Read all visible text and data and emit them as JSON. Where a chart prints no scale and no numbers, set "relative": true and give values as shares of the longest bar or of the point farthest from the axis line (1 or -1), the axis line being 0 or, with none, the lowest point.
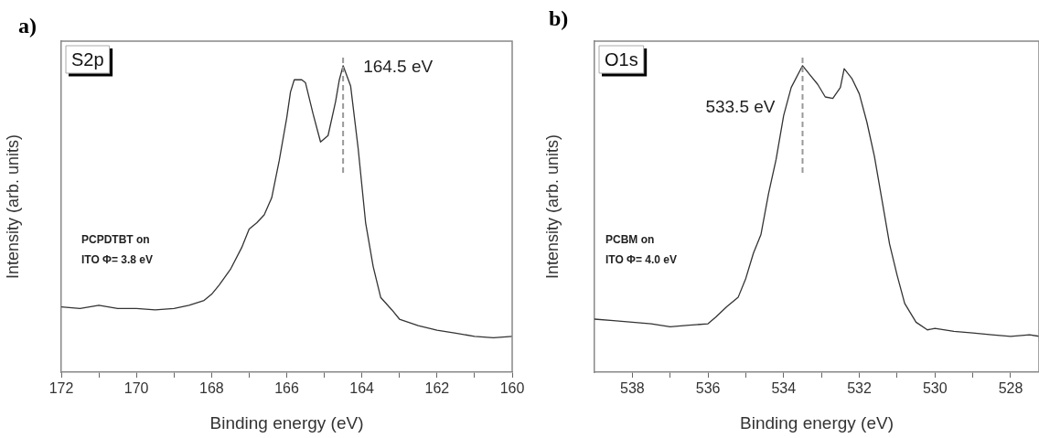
{
  "chart_data": [
    {
      "type": "line",
      "title": "a)",
      "xlabel": "Binding energy (eV)",
      "ylabel": "Intensity (arb. units)",
      "relative": true,
      "grid": false,
      "legend": false,
      "marker": "none",
      "line_style": "solid",
      "xlim": [
        172,
        160
      ],
      "xticks": [
        172,
        {
          "value": 171,
          "label": null
        },
        170,
        {
          "value": 169,
          "label": null
        },
        168,
        {
          "value": 167,
          "label": null
        },
        166,
        {
          "value": 165,
          "label": null
        },
        164,
        {
          "value": 163,
          "label": null
        },
        162,
        {
          "value": 161,
          "label": null
        },
        160
      ],
      "x": [
        172,
        171.5,
        171,
        170.5,
        170,
        169.5,
        169,
        168.6,
        168.2,
        168,
        167.8,
        167.5,
        167.2,
        167,
        166.8,
        166.6,
        166.4,
        166.2,
        166,
        165.9,
        165.8,
        165.6,
        165.5,
        165.3,
        165.1,
        164.9,
        164.7,
        164.6,
        164.5,
        164.3,
        164.1,
        163.9,
        163.7,
        163.5,
        163.2,
        163,
        162.5,
        162,
        161.5,
        161,
        160.5,
        160
      ],
      "series": [
        {
          "color": "#333333",
          "values": [
            0.213,
            0.208,
            0.218,
            0.208,
            0.208,
            0.203,
            0.208,
            0.218,
            0.234,
            0.254,
            0.284,
            0.335,
            0.406,
            0.467,
            0.487,
            0.513,
            0.569,
            0.69,
            0.83,
            0.914,
            0.954,
            0.954,
            0.944,
            0.843,
            0.751,
            0.772,
            0.883,
            0.954,
            1.0,
            0.934,
            0.731,
            0.487,
            0.345,
            0.244,
            0.203,
            0.173,
            0.152,
            0.137,
            0.127,
            0.117,
            0.112,
            0.117
          ]
        }
      ],
      "ref_lines": [
        {
          "axis": "x",
          "value": 164.5,
          "label": "164.5 eV",
          "color": "#999999",
          "line_style": "dashed"
        }
      ],
      "annotations": [
        "S2p",
        "PCPDTBT on\nITO Φ= 3.8 eV"
      ]
    },
    {
      "type": "line",
      "title": "b)",
      "xlabel": "Binding energy (eV)",
      "ylabel": "Intensity (arb. units)",
      "relative": true,
      "grid": false,
      "legend": false,
      "marker": "none",
      "line_style": "solid",
      "xlim": [
        539,
        527.25
      ],
      "xticks": [
        538,
        {
          "value": 537,
          "label": null
        },
        536,
        {
          "value": 535,
          "label": null
        },
        534,
        {
          "value": 533,
          "label": null
        },
        532,
        {
          "value": 531,
          "label": null
        },
        530,
        {
          "value": 529,
          "label": null
        },
        528
      ],
      "x": [
        539,
        538.5,
        538,
        537.5,
        537,
        536.5,
        536,
        535.8,
        535.5,
        535.2,
        535,
        534.8,
        534.6,
        534.4,
        534.2,
        534,
        533.8,
        533.5,
        533.3,
        533.1,
        532.9,
        532.7,
        532.5,
        532.4,
        532.2,
        532,
        531.8,
        531.6,
        531.4,
        531.2,
        531,
        530.8,
        530.5,
        530.2,
        530,
        529.5,
        529,
        528.5,
        528,
        527.5,
        527.25
      ],
      "series": [
        {
          "color": "#333333",
          "values": [
            0.173,
            0.168,
            0.163,
            0.158,
            0.148,
            0.153,
            0.158,
            0.179,
            0.214,
            0.245,
            0.306,
            0.388,
            0.449,
            0.582,
            0.694,
            0.837,
            0.929,
            1.0,
            0.969,
            0.939,
            0.898,
            0.893,
            0.929,
            0.99,
            0.959,
            0.908,
            0.816,
            0.704,
            0.561,
            0.418,
            0.316,
            0.224,
            0.163,
            0.138,
            0.143,
            0.133,
            0.128,
            0.122,
            0.117,
            0.122,
            0.117
          ]
        }
      ],
      "ref_lines": [
        {
          "axis": "x",
          "value": 533.5,
          "label": "533.5 eV",
          "color": "#999999",
          "line_style": "dashed"
        }
      ],
      "annotations": [
        "O1s",
        "PCBM on\nITO Φ= 4.0 eV"
      ]
    }
  ]
}
